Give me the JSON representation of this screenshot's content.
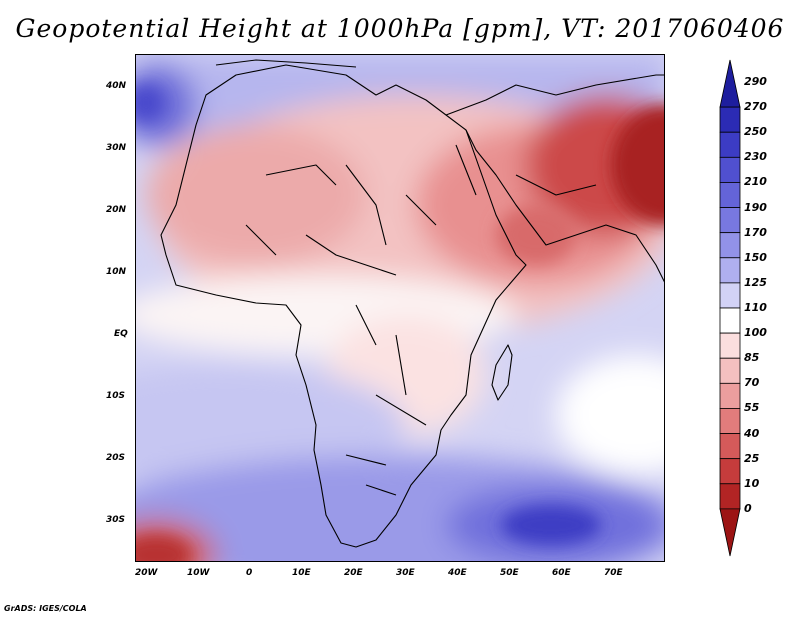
{
  "title": "Geopotential Height at 1000hPa [gpm], VT: 2017060406",
  "credit": "GrADS: IGES/COLA",
  "map": {
    "lat_labels": [
      "40N",
      "30N",
      "20N",
      "10N",
      "EQ",
      "10S",
      "20S",
      "30S"
    ],
    "lon_labels": [
      "20W",
      "10W",
      "0",
      "10E",
      "20E",
      "30E",
      "40E",
      "50E",
      "60E",
      "70E"
    ]
  },
  "colorbar": {
    "labels": [
      "290",
      "270",
      "250",
      "230",
      "210",
      "190",
      "170",
      "150",
      "125",
      "110",
      "100",
      "85",
      "70",
      "55",
      "40",
      "25",
      "10",
      "0"
    ],
    "colors": [
      "#1e1e9e",
      "#2b2bb4",
      "#3c3cc4",
      "#5050d0",
      "#6464d8",
      "#7878e0",
      "#9292e8",
      "#afafef",
      "#d2d2f6",
      "#ffffff",
      "#fbdede",
      "#f4c0c0",
      "#ec9e9e",
      "#e27c7c",
      "#d55a5a",
      "#c53c3c",
      "#b22424",
      "#9c1414"
    ]
  }
}
